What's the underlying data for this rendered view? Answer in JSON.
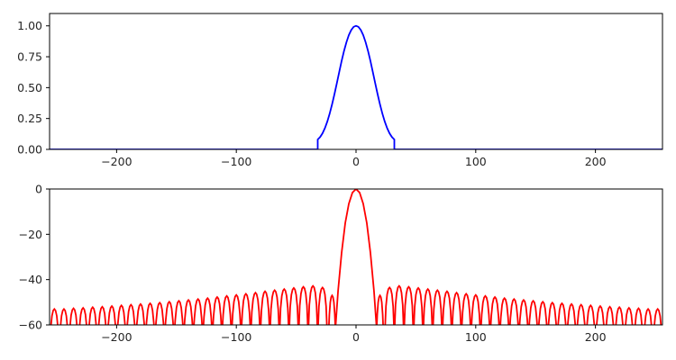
{
  "chart_data": [
    {
      "type": "line",
      "title": "",
      "xlabel": "",
      "ylabel": "",
      "xlim": [
        -256,
        256
      ],
      "ylim": [
        0,
        1.1
      ],
      "xticks": [
        -200,
        -100,
        0,
        100,
        200
      ],
      "xtick_labels": [
        "−200",
        "−100",
        "0",
        "100",
        "200"
      ],
      "yticks": [
        0,
        0.25,
        0.5,
        0.75,
        1.0
      ],
      "ytick_labels": [
        "0.00",
        "0.25",
        "0.50",
        "0.75",
        "1.00"
      ],
      "grid": false,
      "series": [
        {
          "color": "#0000ff",
          "x": [
            -256,
            -32,
            -32,
            -30,
            -28,
            -26,
            -24,
            -22,
            -20,
            -18,
            -16,
            -14,
            -12,
            -10,
            -8,
            -6,
            -4,
            -2,
            0,
            2,
            4,
            6,
            8,
            10,
            12,
            14,
            16,
            18,
            20,
            22,
            24,
            26,
            28,
            30,
            32,
            32,
            256
          ],
          "y": [
            0,
            0,
            0.08,
            0.1,
            0.13,
            0.172,
            0.225,
            0.29,
            0.365,
            0.448,
            0.537,
            0.628,
            0.717,
            0.798,
            0.868,
            0.925,
            0.966,
            0.992,
            1.0,
            0.992,
            0.966,
            0.925,
            0.868,
            0.798,
            0.717,
            0.628,
            0.537,
            0.448,
            0.365,
            0.29,
            0.225,
            0.172,
            0.13,
            0.1,
            0.08,
            0,
            0
          ]
        }
      ]
    },
    {
      "type": "line",
      "title": "",
      "xlabel": "",
      "ylabel": "",
      "xlim": [
        -256,
        256
      ],
      "ylim": [
        -60,
        0
      ],
      "xticks": [
        -200,
        -100,
        0,
        100,
        200
      ],
      "xtick_labels": [
        "−200",
        "−100",
        "0",
        "100",
        "200"
      ],
      "yticks": [
        -60,
        -40,
        -20,
        0
      ],
      "ytick_labels": [
        "−60",
        "−40",
        "−20",
        "0"
      ],
      "grid": false,
      "series": [
        {
          "color": "#ff0000",
          "description_of_shape": "main lobe 0 dB at x=0 reaching -60 near |x|=17, sidelobes about -43 dB decaying to -53 dB at edges, nulls every 8 units",
          "main_lobe": {
            "x": [
              -17,
              -15,
              -12,
              -9,
              -6,
              -3,
              0,
              3,
              6,
              9,
              12,
              15,
              17
            ],
            "y": [
              -60,
              -45,
              -28,
              -15,
              -6.5,
              -1.6,
              0,
              -1.6,
              -6.5,
              -15,
              -28,
              -45,
              -60
            ]
          },
          "near_sidelobes": {
            "x": [
              -20,
              20
            ],
            "y": [
              -47,
              -47
            ]
          },
          "sidelobe_peaks": {
            "x": [
              -252,
              -244,
              -236,
              -228,
              -220,
              -212,
              -204,
              -196,
              -188,
              -180,
              -172,
              -164,
              -156,
              -148,
              -140,
              -132,
              -124,
              -116,
              -108,
              -100,
              -92,
              -84,
              -76,
              -68,
              -60,
              -52,
              -44,
              -36,
              -28,
              28,
              36,
              44,
              52,
              60,
              68,
              76,
              84,
              92,
              100,
              108,
              116,
              124,
              132,
              140,
              148,
              156,
              164,
              172,
              180,
              188,
              196,
              204,
              212,
              220,
              228,
              236,
              244,
              252
            ],
            "y": [
              -53,
              -53,
              -52.7,
              -52.5,
              -52.2,
              -52,
              -51.7,
              -51.4,
              -51.1,
              -50.8,
              -50.5,
              -50.2,
              -49.8,
              -49.4,
              -49,
              -48.6,
              -48.2,
              -47.7,
              -47.2,
              -46.8,
              -46.3,
              -45.8,
              -45.2,
              -44.7,
              -44.2,
              -43.7,
              -43.2,
              -42.8,
              -43.5,
              -43.5,
              -42.8,
              -43.2,
              -43.7,
              -44.2,
              -44.7,
              -45.2,
              -45.8,
              -46.3,
              -46.8,
              -47.2,
              -47.7,
              -48.2,
              -48.6,
              -49,
              -49.4,
              -49.8,
              -50.2,
              -50.5,
              -50.8,
              -51.1,
              -51.4,
              -51.7,
              -52,
              -52.2,
              -52.5,
              -52.7,
              -53,
              -53
            ]
          },
          "null_spacing": 8
        }
      ]
    }
  ]
}
